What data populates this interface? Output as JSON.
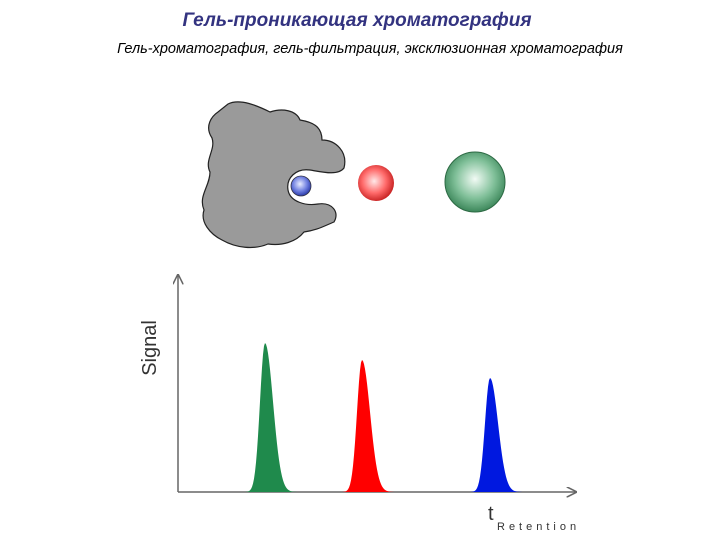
{
  "header": {
    "title": "Гель-проникающая хроматография",
    "subtitle": "Гель-хроматография, гель-фильтрация, эксклюзионная хроматография"
  },
  "plot": {
    "y_label": "Signal",
    "x_label": "t",
    "x_sublabel": "Retention"
  }
}
